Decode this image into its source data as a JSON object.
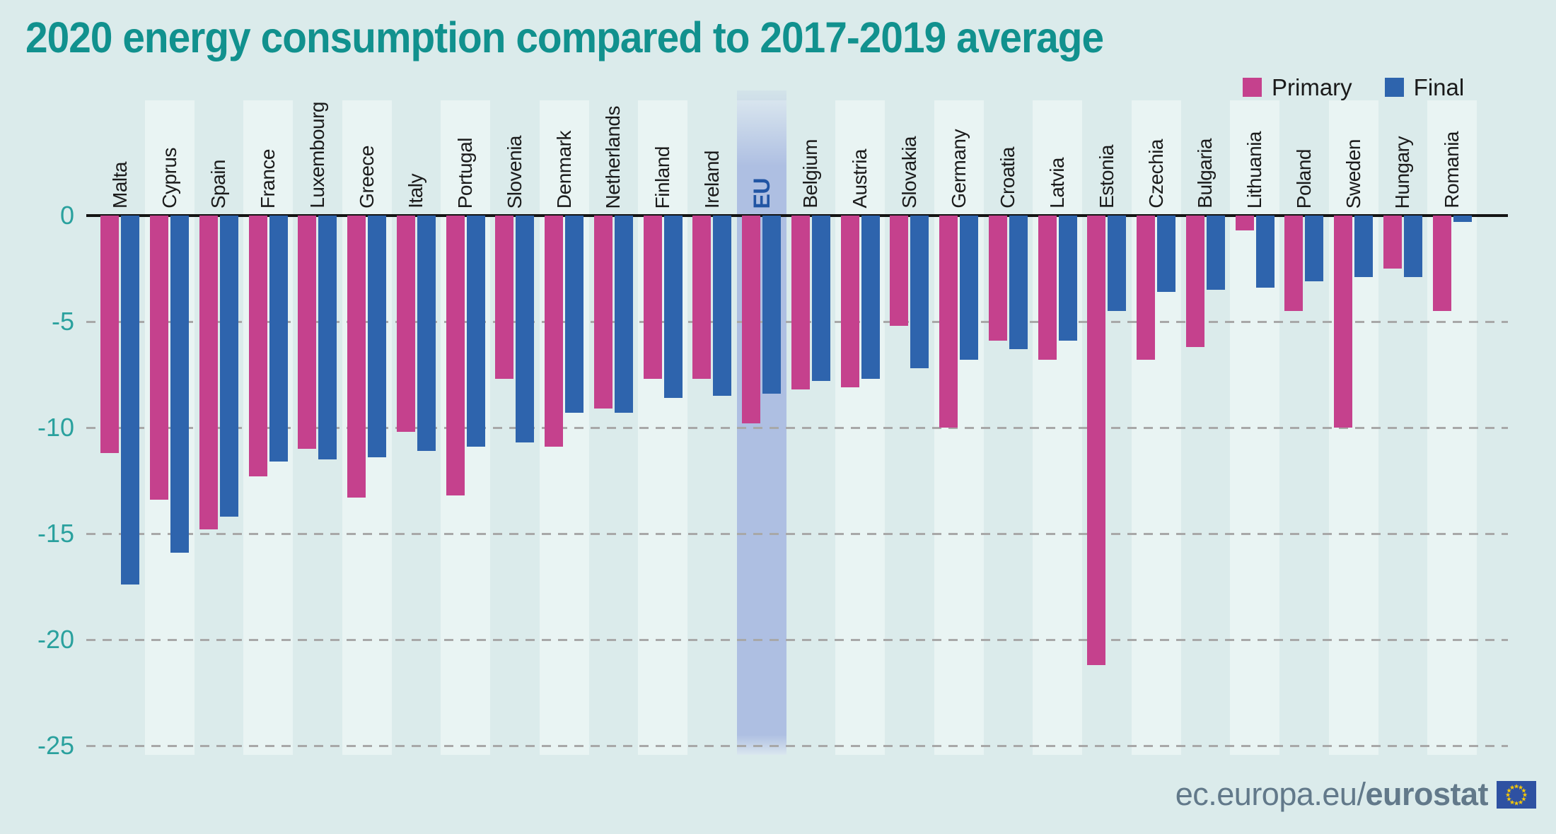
{
  "title": "2020 energy consumption compared to 2017-2019 average",
  "legend": [
    {
      "label": "Primary",
      "color": "#c5418d"
    },
    {
      "label": "Final",
      "color": "#2e64ad"
    }
  ],
  "footer": {
    "url_prefix": "ec.europa.eu/",
    "url_bold": "eurostat",
    "flag_icon": "eu-flag"
  },
  "colors": {
    "background": "#dbebeb",
    "column_stripe": "#e9f4f3",
    "highlight_band": "#aebfe2",
    "primary_bar": "#c5418d",
    "final_bar": "#2e64ad",
    "title_text": "#11918e",
    "tick_text": "#2aa19e",
    "category_text": "#1b1b1b",
    "highlight_text": "#2155a4",
    "gridline": "#a8a8a8",
    "axis_line": "#141414",
    "footer_text": "#62798a",
    "flag_blue": "#2e51a2",
    "flag_yellow": "#ffcc00"
  },
  "chart_data": {
    "type": "bar",
    "title": "2020 energy consumption compared to 2017-2019 average",
    "unit": "%",
    "categories": [
      "Malta",
      "Cyprus",
      "Spain",
      "France",
      "Luxembourg",
      "Greece",
      "Italy",
      "Portugal",
      "Slovenia",
      "Denmark",
      "Netherlands",
      "Finland",
      "Ireland",
      "EU",
      "Belgium",
      "Austria",
      "Slovakia",
      "Germany",
      "Croatia",
      "Latvia",
      "Estonia",
      "Czechia",
      "Bulgaria",
      "Lithuania",
      "Poland",
      "Sweden",
      "Hungary",
      "Romania"
    ],
    "highlight_category": "EU",
    "series": [
      {
        "name": "Primary",
        "values": [
          -11.2,
          -13.4,
          -14.8,
          -12.3,
          -11.0,
          -13.3,
          -10.2,
          -13.2,
          -7.7,
          -10.9,
          -9.1,
          -7.7,
          -7.7,
          -9.8,
          -8.2,
          -8.1,
          -5.2,
          -10.0,
          -5.9,
          -6.8,
          -21.2,
          -6.8,
          -6.2,
          -0.7,
          -4.5,
          -10.0,
          -2.5,
          -4.5
        ]
      },
      {
        "name": "Final",
        "values": [
          -17.4,
          -15.9,
          -14.2,
          -11.6,
          -11.5,
          -11.4,
          -11.1,
          -10.9,
          -10.7,
          -9.3,
          -9.3,
          -8.6,
          -8.5,
          -8.4,
          -7.8,
          -7.7,
          -7.2,
          -6.8,
          -6.3,
          -5.9,
          -4.5,
          -3.6,
          -3.5,
          -3.4,
          -3.1,
          -2.9,
          -2.9,
          -0.3
        ]
      }
    ],
    "yticks": [
      "0",
      "-5",
      "-10",
      "-15",
      "-20",
      "-25"
    ],
    "ytick_values": [
      0,
      -5,
      -10,
      -15,
      -20,
      -25
    ],
    "ylim": [
      -25,
      0
    ],
    "grid": "horizontal-dashed",
    "legend_position": "top-right"
  }
}
